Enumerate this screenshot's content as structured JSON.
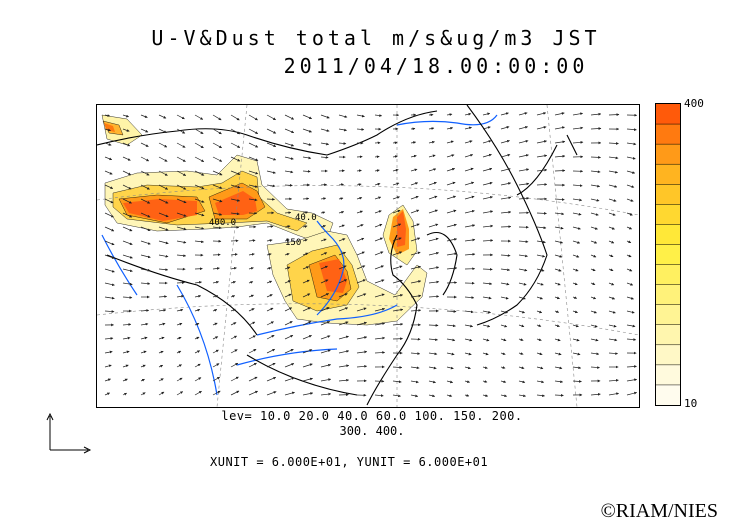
{
  "title": {
    "line1": "U-V&Dust total m/s&ug/m3 JST",
    "line2": "2011/04/18.00:00:00"
  },
  "colorbar": {
    "max_label": "400",
    "min_label": "10",
    "colors": [
      "#ff5a0a",
      "#ff7a10",
      "#ff9a18",
      "#ffb420",
      "#ffc628",
      "#ffd830",
      "#ffe838",
      "#fff048",
      "#fff060",
      "#fff27a",
      "#fff494",
      "#fff6ae",
      "#fff8c6",
      "#fffadd",
      "#fffcee"
    ]
  },
  "contour_labels": [
    "40.0",
    "400.0",
    "150"
  ],
  "levels": {
    "line1": "lev= 10.0 20.0 40.0 60.0 100. 150. 200.",
    "line2": "300. 400."
  },
  "units": "XUNIT = 6.000E+01, YUNIT = 6.000E+01",
  "copyright": "©RIAM/NIES",
  "map_colors": {
    "coast": "#000000",
    "river": "#1060ff",
    "arrow": "#222222",
    "grid": "#888888"
  }
}
